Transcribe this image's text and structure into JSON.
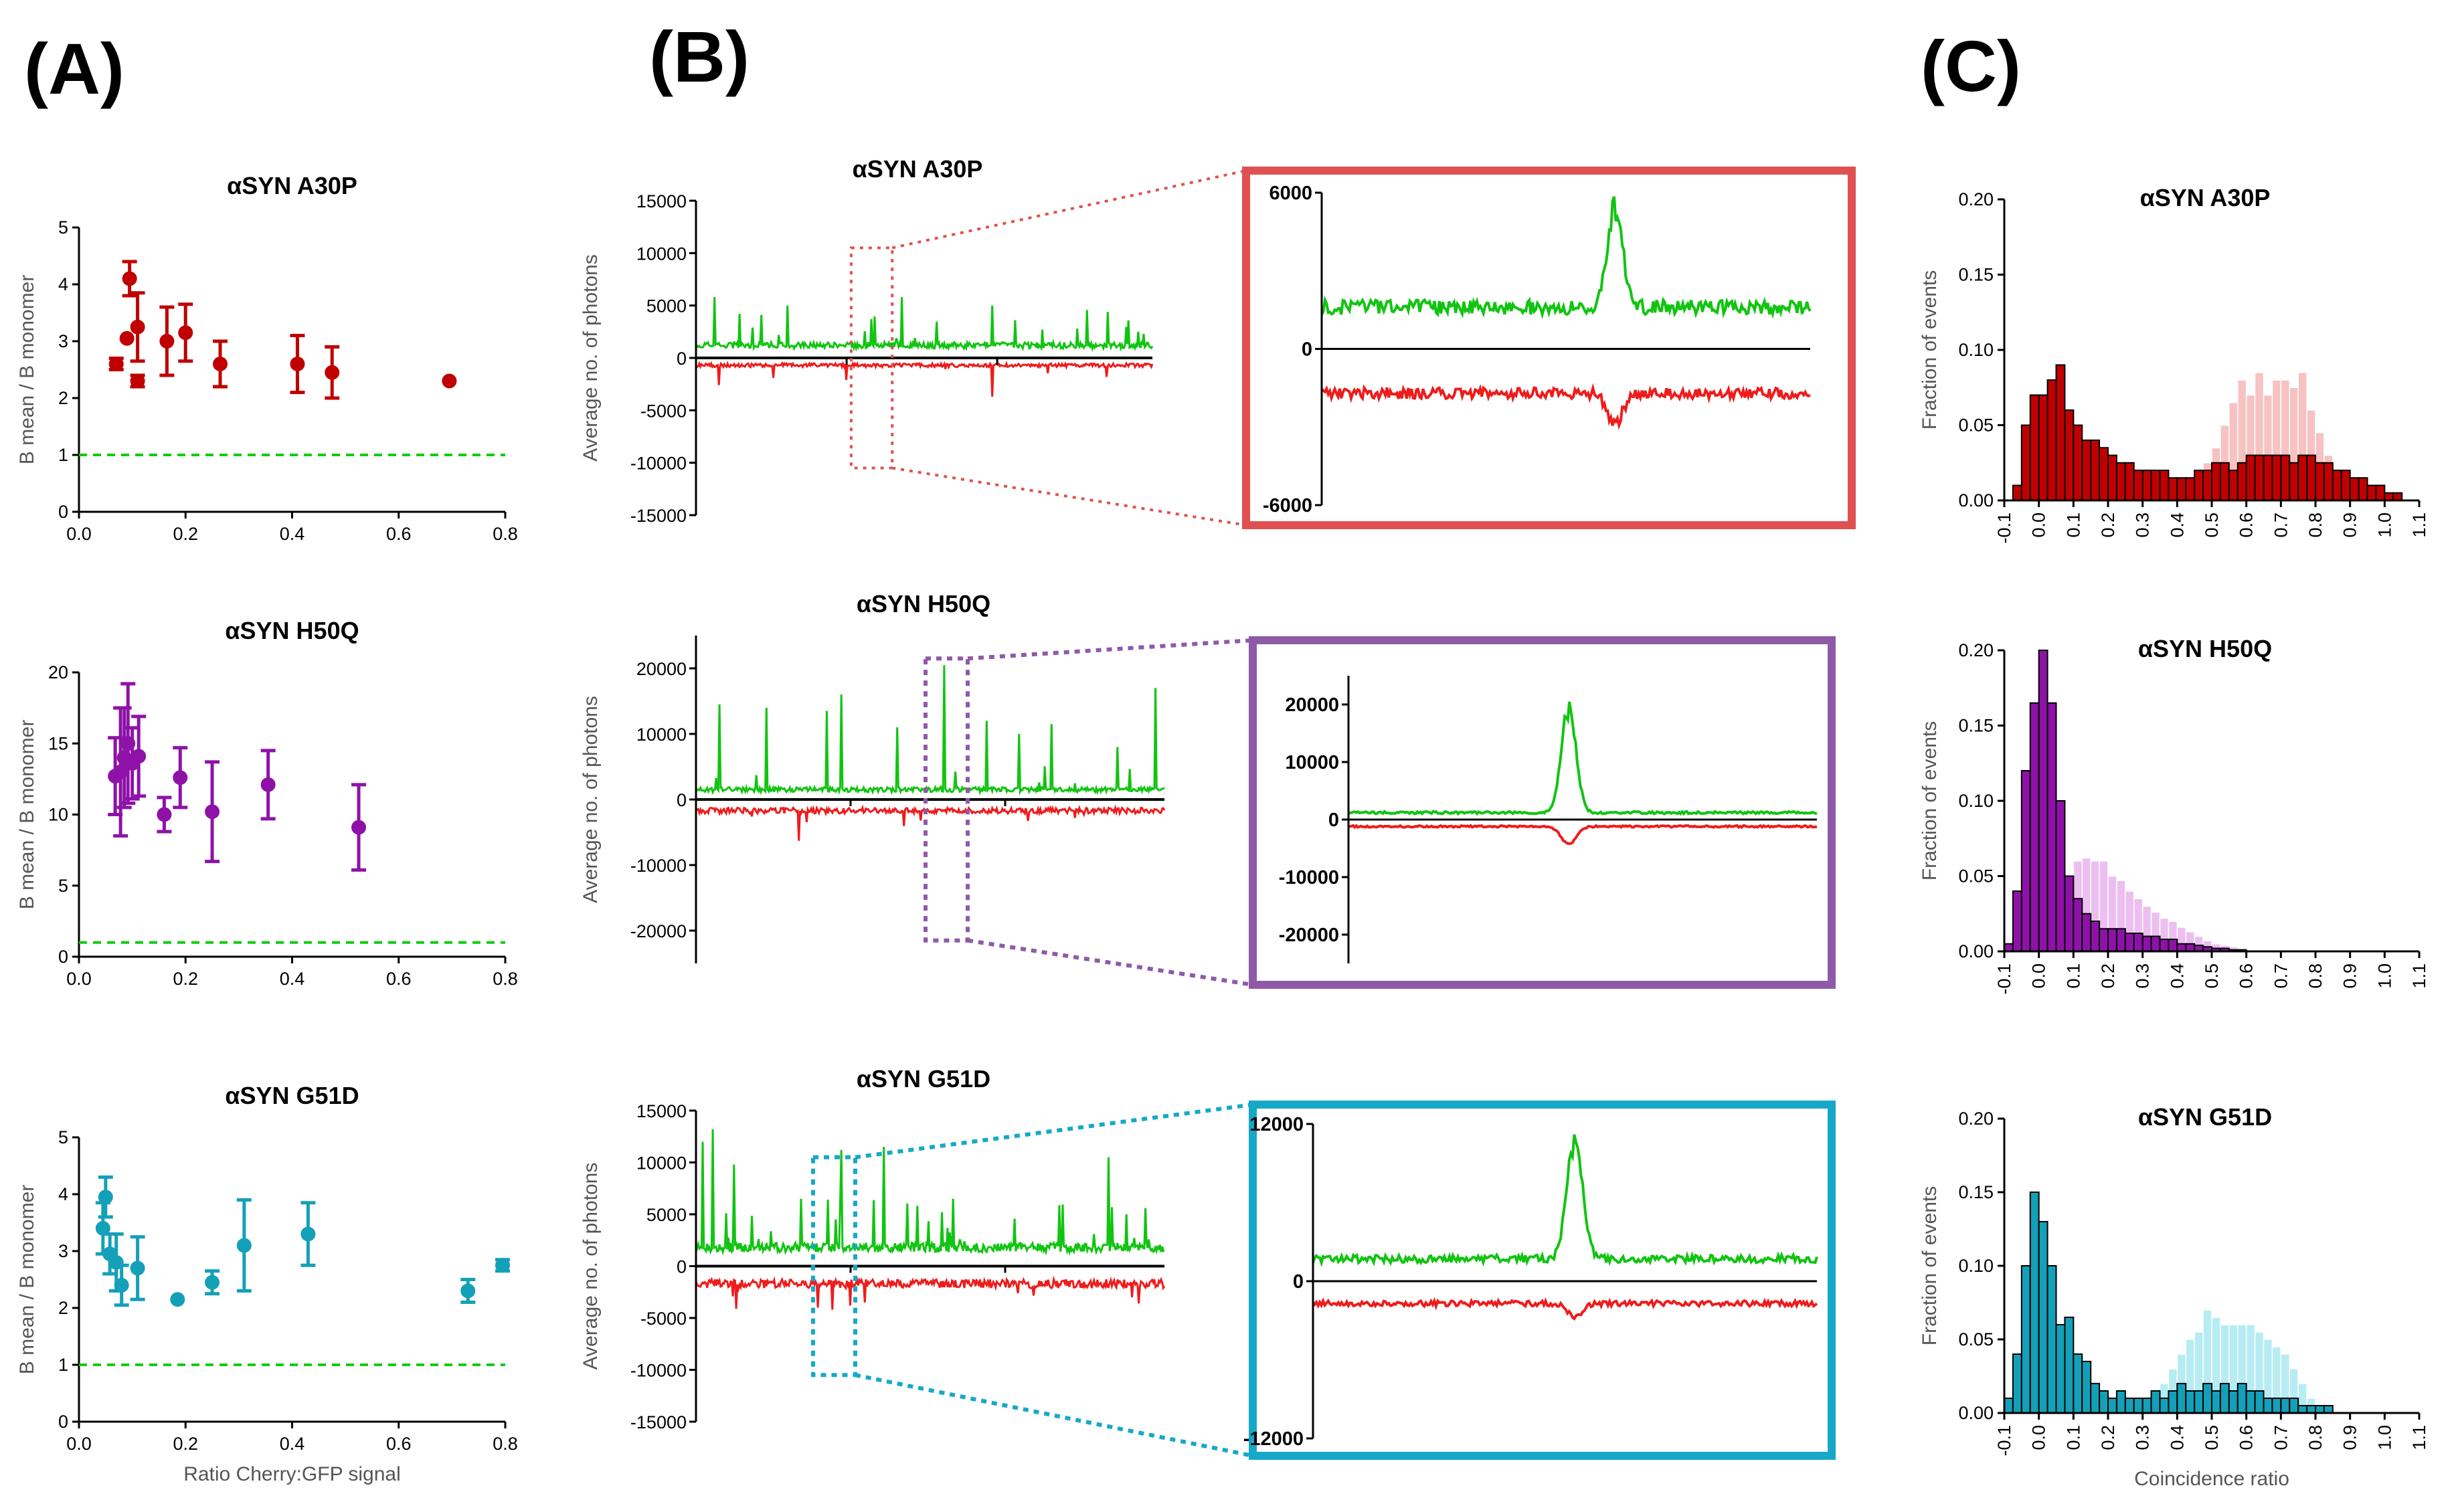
{
  "panel_labels": [
    "(A)",
    "(B)",
    "(C)"
  ],
  "colors": {
    "A30P": "#c00000",
    "A30P_light": "#f6c2c2",
    "H50Q": "#8e12a8",
    "H50Q_light": "#ecbff0",
    "G51D": "#14a0b8",
    "G51D_light": "#b7ecf3",
    "green": "#11c411",
    "red": "#ee1c1c",
    "box_A30P": "#e05050",
    "box_H50Q": "#8e5aa8",
    "box_G51D": "#16a8c8",
    "dash_green": "#11cc11"
  },
  "chart_data": [
    {
      "id": "A1",
      "type": "scatter",
      "title": "αSYN A30P",
      "xlabel": "",
      "ylabel": "B mean / B monomer",
      "xlim": [
        0,
        0.8
      ],
      "ylim": [
        0,
        5
      ],
      "xticks": [
        "0.0",
        "0.2",
        "0.4",
        "0.6",
        "0.8"
      ],
      "yticks": [
        "0",
        "1",
        "2",
        "3",
        "4",
        "5"
      ],
      "reference_line": 1,
      "color_key": "A30P",
      "points": [
        {
          "x": 0.07,
          "y": 2.6,
          "err": 0.1
        },
        {
          "x": 0.09,
          "y": 3.05,
          "err": 0.0
        },
        {
          "x": 0.095,
          "y": 4.1,
          "err": 0.3
        },
        {
          "x": 0.11,
          "y": 2.3,
          "err": 0.1
        },
        {
          "x": 0.11,
          "y": 3.25,
          "err": 0.6
        },
        {
          "x": 0.165,
          "y": 3.0,
          "err": 0.6
        },
        {
          "x": 0.2,
          "y": 3.15,
          "err": 0.5
        },
        {
          "x": 0.265,
          "y": 2.6,
          "err": 0.4
        },
        {
          "x": 0.41,
          "y": 2.6,
          "err": 0.5
        },
        {
          "x": 0.475,
          "y": 2.45,
          "err": 0.45
        },
        {
          "x": 0.695,
          "y": 2.3,
          "err": 0.0
        }
      ]
    },
    {
      "id": "A2",
      "type": "scatter",
      "title": "αSYN H50Q",
      "xlabel": "",
      "ylabel": "B mean / B monomer",
      "xlim": [
        0,
        0.8
      ],
      "ylim": [
        0,
        20
      ],
      "xticks": [
        "0.0",
        "0.2",
        "0.4",
        "0.6",
        "0.8"
      ],
      "yticks": [
        "0",
        "5",
        "10",
        "15",
        "20"
      ],
      "reference_line": 1,
      "color_key": "H50Q",
      "points": [
        {
          "x": 0.068,
          "y": 12.7,
          "err": 2.7
        },
        {
          "x": 0.078,
          "y": 13.0,
          "err": 4.5
        },
        {
          "x": 0.085,
          "y": 14.0,
          "err": 3.5
        },
        {
          "x": 0.092,
          "y": 15.0,
          "err": 4.2
        },
        {
          "x": 0.1,
          "y": 13.6,
          "err": 2.5
        },
        {
          "x": 0.112,
          "y": 14.1,
          "err": 2.8
        },
        {
          "x": 0.16,
          "y": 10.0,
          "err": 1.2
        },
        {
          "x": 0.19,
          "y": 12.6,
          "err": 2.1
        },
        {
          "x": 0.25,
          "y": 10.2,
          "err": 3.5
        },
        {
          "x": 0.355,
          "y": 12.1,
          "err": 2.4
        },
        {
          "x": 0.525,
          "y": 9.1,
          "err": 3.0
        }
      ]
    },
    {
      "id": "A3",
      "type": "scatter",
      "title": "αSYN G51D",
      "xlabel": "Ratio Cherry:GFP signal",
      "ylabel": "B mean / B monomer",
      "xlim": [
        0,
        0.8
      ],
      "ylim": [
        0,
        5
      ],
      "xticks": [
        "0.0",
        "0.2",
        "0.4",
        "0.6",
        "0.8"
      ],
      "yticks": [
        "0",
        "1",
        "2",
        "3",
        "4",
        "5"
      ],
      "reference_line": 1,
      "color_key": "G51D",
      "points": [
        {
          "x": 0.045,
          "y": 3.4,
          "err": 0.45
        },
        {
          "x": 0.05,
          "y": 3.95,
          "err": 0.35
        },
        {
          "x": 0.058,
          "y": 2.95,
          "err": 0.35
        },
        {
          "x": 0.07,
          "y": 2.8,
          "err": 0.5
        },
        {
          "x": 0.08,
          "y": 2.4,
          "err": 0.35
        },
        {
          "x": 0.11,
          "y": 2.7,
          "err": 0.55
        },
        {
          "x": 0.185,
          "y": 2.15,
          "err": 0.0
        },
        {
          "x": 0.25,
          "y": 2.45,
          "err": 0.2
        },
        {
          "x": 0.31,
          "y": 3.1,
          "err": 0.8
        },
        {
          "x": 0.43,
          "y": 3.3,
          "err": 0.55
        },
        {
          "x": 0.73,
          "y": 2.3,
          "err": 0.2
        },
        {
          "x": 0.795,
          "y": 2.75,
          "err": 0.1
        }
      ]
    },
    {
      "id": "B1",
      "type": "line",
      "title": "αSYN A30P",
      "ylabel": "Average no. of photons",
      "ylim": [
        -15000,
        15000
      ],
      "yticks": [
        "15000",
        "10000",
        "5000",
        "0",
        "-5000",
        "-10000",
        "-15000"
      ],
      "green_baseline": 1200,
      "red_baseline": -700,
      "green_spikes": [
        {
          "t": 0.04,
          "v": 5800
        },
        {
          "t": 0.095,
          "v": 4200
        },
        {
          "t": 0.2,
          "v": 5000
        },
        {
          "t": 0.45,
          "v": 5800
        },
        {
          "t": 0.65,
          "v": 5000
        },
        {
          "t": 0.7,
          "v": 3600
        },
        {
          "t": 0.76,
          "v": 2700
        },
        {
          "t": 0.97,
          "v": 2500
        }
      ],
      "red_spikes": [
        {
          "t": 0.05,
          "v": -2600
        },
        {
          "t": 0.17,
          "v": -1900
        },
        {
          "t": 0.33,
          "v": -2100
        },
        {
          "t": 0.65,
          "v": -3700
        },
        {
          "t": 0.9,
          "v": -1800
        }
      ],
      "zoom_window": [
        0.34,
        0.43
      ],
      "zoom_box": {
        "yticks": [
          "6000",
          "0",
          "-6000"
        ],
        "ylim": [
          -6000,
          6000
        ],
        "green_baseline": 1600,
        "red_baseline": -1700,
        "peak_t": 0.6,
        "green_peak": 5900,
        "red_dip": -2900
      }
    },
    {
      "id": "B2",
      "type": "line",
      "title": "αSYN H50Q",
      "ylabel": "Average no. of photons",
      "ylim": [
        -25000,
        25000
      ],
      "yticks": [
        "20000",
        "10000",
        "0",
        "-10000",
        "-20000"
      ],
      "green_baseline": 1500,
      "red_baseline": -1700,
      "green_spikes": [
        {
          "t": 0.05,
          "v": 14500
        },
        {
          "t": 0.15,
          "v": 14000
        },
        {
          "t": 0.28,
          "v": 13500
        },
        {
          "t": 0.31,
          "v": 16000
        },
        {
          "t": 0.43,
          "v": 11000
        },
        {
          "t": 0.53,
          "v": 20500
        },
        {
          "t": 0.62,
          "v": 12000
        },
        {
          "t": 0.69,
          "v": 10000
        },
        {
          "t": 0.76,
          "v": 11500
        },
        {
          "t": 0.9,
          "v": 8000
        },
        {
          "t": 0.98,
          "v": 17000
        }
      ],
      "red_spikes": [
        {
          "t": 0.22,
          "v": -6300
        },
        {
          "t": 0.48,
          "v": -3200
        },
        {
          "t": 0.81,
          "v": -2800
        }
      ],
      "zoom_window": [
        0.49,
        0.58
      ],
      "zoom_box": {
        "yticks": [
          "20000",
          "10000",
          "0",
          "-10000",
          "-20000"
        ],
        "ylim": [
          -25000,
          25000
        ],
        "green_baseline": 1200,
        "red_baseline": -1200,
        "peak_t": 0.47,
        "green_peak": 21000,
        "red_dip": -4300
      }
    },
    {
      "id": "B3",
      "type": "line",
      "title": "αSYN G51D",
      "ylabel": "Average no. of photons",
      "ylim": [
        -15000,
        15000
      ],
      "yticks": [
        "15000",
        "10000",
        "5000",
        "0",
        "-5000",
        "-10000",
        "-15000"
      ],
      "green_baseline": 1800,
      "red_baseline": -1700,
      "green_spikes": [
        {
          "t": 0.015,
          "v": 12000
        },
        {
          "t": 0.035,
          "v": 13200
        },
        {
          "t": 0.08,
          "v": 9800
        },
        {
          "t": 0.31,
          "v": 11200
        },
        {
          "t": 0.4,
          "v": 11500
        },
        {
          "t": 0.55,
          "v": 6500
        },
        {
          "t": 0.88,
          "v": 10500
        },
        {
          "t": 0.92,
          "v": 5000
        }
      ],
      "red_spikes": [
        {
          "t": 0.26,
          "v": -4000
        },
        {
          "t": 0.29,
          "v": -4200
        },
        {
          "t": 0.33,
          "v": -3800
        },
        {
          "t": 0.36,
          "v": -3500
        },
        {
          "t": 0.93,
          "v": -3000
        }
      ],
      "zoom_window": [
        0.25,
        0.34
      ],
      "zoom_box": {
        "yticks": [
          "12000",
          "0",
          "-12000"
        ],
        "ylim": [
          -12000,
          12000
        ],
        "green_baseline": 1700,
        "red_baseline": -1700,
        "peak_t": 0.52,
        "green_peak": 11900,
        "red_dip": -2700
      }
    },
    {
      "id": "C1",
      "type": "bar",
      "title": "αSYN A30P",
      "xlabel": "",
      "ylabel": "Fraction of events",
      "ylim": [
        0,
        0.2
      ],
      "yticks": [
        "0.00",
        "0.05",
        "0.10",
        "0.15",
        "0.20"
      ],
      "xticks": [
        "-0.1",
        "0.0",
        "0.1",
        "0.2",
        "0.3",
        "0.4",
        "0.5",
        "0.6",
        "0.7",
        "0.8",
        "0.9",
        "1.0",
        "1.1"
      ],
      "bin_start": -0.1,
      "bin_width": 0.025,
      "color_key": "A30P",
      "values": [
        0.0,
        0.01,
        0.05,
        0.07,
        0.07,
        0.08,
        0.09,
        0.06,
        0.05,
        0.04,
        0.04,
        0.035,
        0.03,
        0.025,
        0.025,
        0.02,
        0.02,
        0.02,
        0.02,
        0.015,
        0.015,
        0.015,
        0.02,
        0.02,
        0.025,
        0.025,
        0.02,
        0.025,
        0.03,
        0.03,
        0.03,
        0.03,
        0.03,
        0.025,
        0.03,
        0.03,
        0.025,
        0.025,
        0.02,
        0.02,
        0.015,
        0.015,
        0.01,
        0.01,
        0.005,
        0.005
      ],
      "control_values": [
        0.0,
        0.0,
        0.0,
        0.0,
        0.0,
        0.0,
        0.0,
        0.0,
        0.0,
        0.0,
        0.0,
        0.0,
        0.0,
        0.0,
        0.0,
        0.0,
        0.0,
        0.005,
        0.005,
        0.01,
        0.01,
        0.015,
        0.02,
        0.025,
        0.035,
        0.05,
        0.065,
        0.08,
        0.07,
        0.085,
        0.07,
        0.08,
        0.08,
        0.075,
        0.085,
        0.06,
        0.045,
        0.03,
        0.015,
        0.02,
        0.01,
        0.005,
        0.0,
        0.0,
        0.0,
        0.0
      ]
    },
    {
      "id": "C2",
      "type": "bar",
      "title": "αSYN H50Q",
      "xlabel": "",
      "ylabel": "Fraction of events",
      "ylim": [
        0,
        0.2
      ],
      "yticks": [
        "0.00",
        "0.05",
        "0.10",
        "0.15",
        "0.20"
      ],
      "xticks": [
        "-0.1",
        "0.0",
        "0.1",
        "0.2",
        "0.3",
        "0.4",
        "0.5",
        "0.6",
        "0.7",
        "0.8",
        "0.9",
        "1.0",
        "1.1"
      ],
      "bin_start": -0.1,
      "bin_width": 0.025,
      "color_key": "H50Q",
      "values": [
        0.005,
        0.04,
        0.12,
        0.165,
        0.2,
        0.165,
        0.1,
        0.05,
        0.035,
        0.025,
        0.02,
        0.015,
        0.015,
        0.015,
        0.012,
        0.012,
        0.01,
        0.01,
        0.008,
        0.008,
        0.005,
        0.005,
        0.004,
        0.003,
        0.002,
        0.002,
        0.001,
        0.001,
        0.0,
        0.0,
        0.0,
        0.0,
        0.0,
        0.0,
        0.0,
        0.0,
        0.0,
        0.0,
        0.0,
        0.0,
        0.0,
        0.0,
        0.0,
        0.0,
        0.0,
        0.0
      ],
      "control_values": [
        0.0,
        0.0,
        0.0,
        0.005,
        0.01,
        0.02,
        0.035,
        0.05,
        0.06,
        0.062,
        0.06,
        0.06,
        0.05,
        0.047,
        0.04,
        0.035,
        0.03,
        0.026,
        0.022,
        0.02,
        0.016,
        0.013,
        0.01,
        0.007,
        0.005,
        0.004,
        0.003,
        0.002,
        0.001,
        0.0,
        0.0,
        0.0,
        0.0,
        0.0,
        0.0,
        0.0,
        0.0,
        0.0,
        0.0,
        0.0,
        0.0,
        0.0,
        0.0,
        0.0,
        0.0,
        0.0
      ]
    },
    {
      "id": "C3",
      "type": "bar",
      "title": "αSYN G51D",
      "xlabel": "Coincidence ratio",
      "ylabel": "Fraction of events",
      "ylim": [
        0,
        0.2
      ],
      "yticks": [
        "0.00",
        "0.05",
        "0.10",
        "0.15",
        "0.20"
      ],
      "xticks": [
        "-0.1",
        "0.0",
        "0.1",
        "0.2",
        "0.3",
        "0.4",
        "0.5",
        "0.6",
        "0.7",
        "0.8",
        "0.9",
        "1.0",
        "1.1"
      ],
      "bin_start": -0.1,
      "bin_width": 0.025,
      "color_key": "G51D",
      "values": [
        0.01,
        0.04,
        0.1,
        0.15,
        0.13,
        0.1,
        0.06,
        0.065,
        0.04,
        0.035,
        0.02,
        0.015,
        0.01,
        0.015,
        0.01,
        0.01,
        0.01,
        0.015,
        0.01,
        0.015,
        0.02,
        0.015,
        0.015,
        0.02,
        0.015,
        0.02,
        0.015,
        0.02,
        0.015,
        0.015,
        0.01,
        0.01,
        0.01,
        0.01,
        0.005,
        0.005,
        0.005,
        0.005,
        0.0,
        0.0,
        0.0,
        0.0,
        0.0,
        0.0,
        0.0,
        0.0
      ],
      "control_values": [
        0.0,
        0.0,
        0.0,
        0.0,
        0.0,
        0.0,
        0.0,
        0.0,
        0.0,
        0.0,
        0.0,
        0.0,
        0.0,
        0.0,
        0.0,
        0.005,
        0.01,
        0.015,
        0.02,
        0.03,
        0.04,
        0.05,
        0.055,
        0.07,
        0.065,
        0.06,
        0.06,
        0.06,
        0.06,
        0.055,
        0.05,
        0.045,
        0.04,
        0.03,
        0.02,
        0.01,
        0.005,
        0.0,
        0.0,
        0.0,
        0.0,
        0.0,
        0.0,
        0.0,
        0.0,
        0.0
      ]
    }
  ]
}
